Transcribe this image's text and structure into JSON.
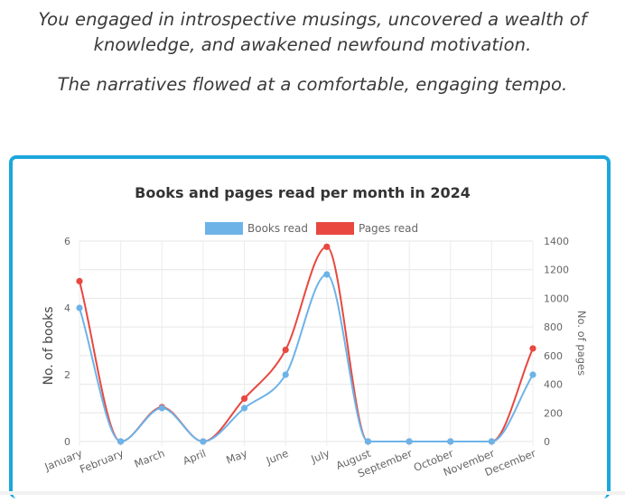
{
  "intro": {
    "line1": "You engaged in introspective musings, uncovered a wealth of knowledge, and awakened newfound motivation.",
    "line2": "The narratives flowed at a comfortable, engaging tempo."
  },
  "chart_data": {
    "type": "line",
    "title": "Books and pages read per month in 2024",
    "categories": [
      "January",
      "February",
      "March",
      "April",
      "May",
      "June",
      "July",
      "August",
      "September",
      "October",
      "November",
      "December"
    ],
    "series": [
      {
        "name": "Books read",
        "axis": "left",
        "color": "#6db3e8",
        "values": [
          4,
          0,
          1,
          0,
          1,
          2,
          5,
          0,
          0,
          0,
          0,
          2
        ]
      },
      {
        "name": "Pages read",
        "axis": "right",
        "color": "#e8483f",
        "values": [
          1120,
          0,
          240,
          0,
          300,
          640,
          1360,
          0,
          0,
          0,
          0,
          650
        ]
      }
    ],
    "y_left": {
      "label": "No. of books",
      "min": 0,
      "max": 6,
      "ticks": [
        0,
        2,
        4,
        6
      ]
    },
    "y_right": {
      "label": "No. of pages",
      "min": 0,
      "max": 1400,
      "ticks": [
        0,
        200,
        400,
        600,
        800,
        1000,
        1200,
        1400
      ]
    },
    "legend_position": "top",
    "grid": true
  }
}
